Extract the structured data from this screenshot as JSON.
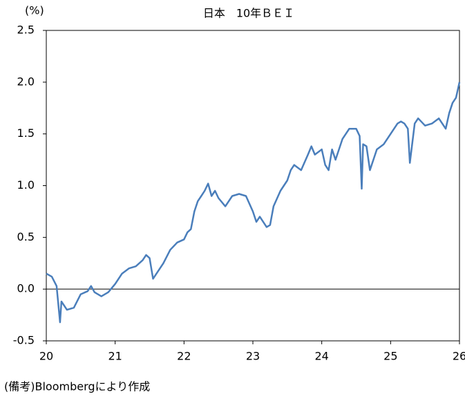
{
  "chart_data": {
    "type": "line",
    "title": "日本　10年ＢＥＩ",
    "y_unit": "(%)",
    "note": "(備考)Bloombergにより作成",
    "xlim": [
      20,
      26
    ],
    "xticks": [
      20,
      21,
      22,
      23,
      24,
      25,
      26
    ],
    "ylim": [
      -0.5,
      2.5
    ],
    "yticks": [
      {
        "value": 2.5,
        "label": "2.5"
      },
      {
        "value": 2,
        "label": "2.0"
      },
      {
        "value": 1.5,
        "label": "1.5"
      },
      {
        "value": 1,
        "label": "1.0"
      },
      {
        "value": 0.5,
        "label": "0.5"
      },
      {
        "value": 0,
        "label": "0.0"
      },
      {
        "value": -0.5,
        "label": "-0.5"
      }
    ],
    "zero_line": true,
    "series": [
      {
        "color": "#4a7ebb",
        "x": [
          20.0,
          20.08,
          20.15,
          20.2,
          20.22,
          20.3,
          20.4,
          20.5,
          20.6,
          20.65,
          20.7,
          20.8,
          20.9,
          21.0,
          21.1,
          21.2,
          21.3,
          21.4,
          21.45,
          21.5,
          21.55,
          21.6,
          21.7,
          21.8,
          21.9,
          22.0,
          22.05,
          22.1,
          22.15,
          22.2,
          22.25,
          22.3,
          22.35,
          22.4,
          22.45,
          22.5,
          22.6,
          22.7,
          22.8,
          22.9,
          23.0,
          23.05,
          23.1,
          23.2,
          23.25,
          23.3,
          23.4,
          23.5,
          23.55,
          23.6,
          23.7,
          23.8,
          23.85,
          23.9,
          24.0,
          24.05,
          24.1,
          24.15,
          24.2,
          24.3,
          24.4,
          24.5,
          24.55,
          24.58,
          24.6,
          24.65,
          24.7,
          24.75,
          24.8,
          24.9,
          25.0,
          25.1,
          25.15,
          25.2,
          25.25,
          25.28,
          25.35,
          25.4,
          25.5,
          25.6,
          25.7,
          25.8,
          25.85,
          25.9,
          25.95,
          26.0
        ],
        "values": [
          0.15,
          0.12,
          0.03,
          -0.32,
          -0.12,
          -0.2,
          -0.18,
          -0.05,
          -0.02,
          0.03,
          -0.03,
          -0.07,
          -0.03,
          0.05,
          0.15,
          0.2,
          0.22,
          0.28,
          0.33,
          0.3,
          0.1,
          0.15,
          0.25,
          0.38,
          0.45,
          0.48,
          0.55,
          0.58,
          0.75,
          0.85,
          0.9,
          0.95,
          1.02,
          0.9,
          0.95,
          0.88,
          0.8,
          0.9,
          0.92,
          0.9,
          0.75,
          0.65,
          0.7,
          0.6,
          0.62,
          0.8,
          0.95,
          1.05,
          1.15,
          1.2,
          1.15,
          1.3,
          1.38,
          1.3,
          1.35,
          1.2,
          1.15,
          1.35,
          1.25,
          1.45,
          1.55,
          1.55,
          1.48,
          0.97,
          1.4,
          1.38,
          1.15,
          1.25,
          1.35,
          1.4,
          1.5,
          1.6,
          1.62,
          1.6,
          1.55,
          1.22,
          1.6,
          1.65,
          1.58,
          1.6,
          1.65,
          1.55,
          1.7,
          1.8,
          1.85,
          2.0
        ]
      }
    ]
  }
}
